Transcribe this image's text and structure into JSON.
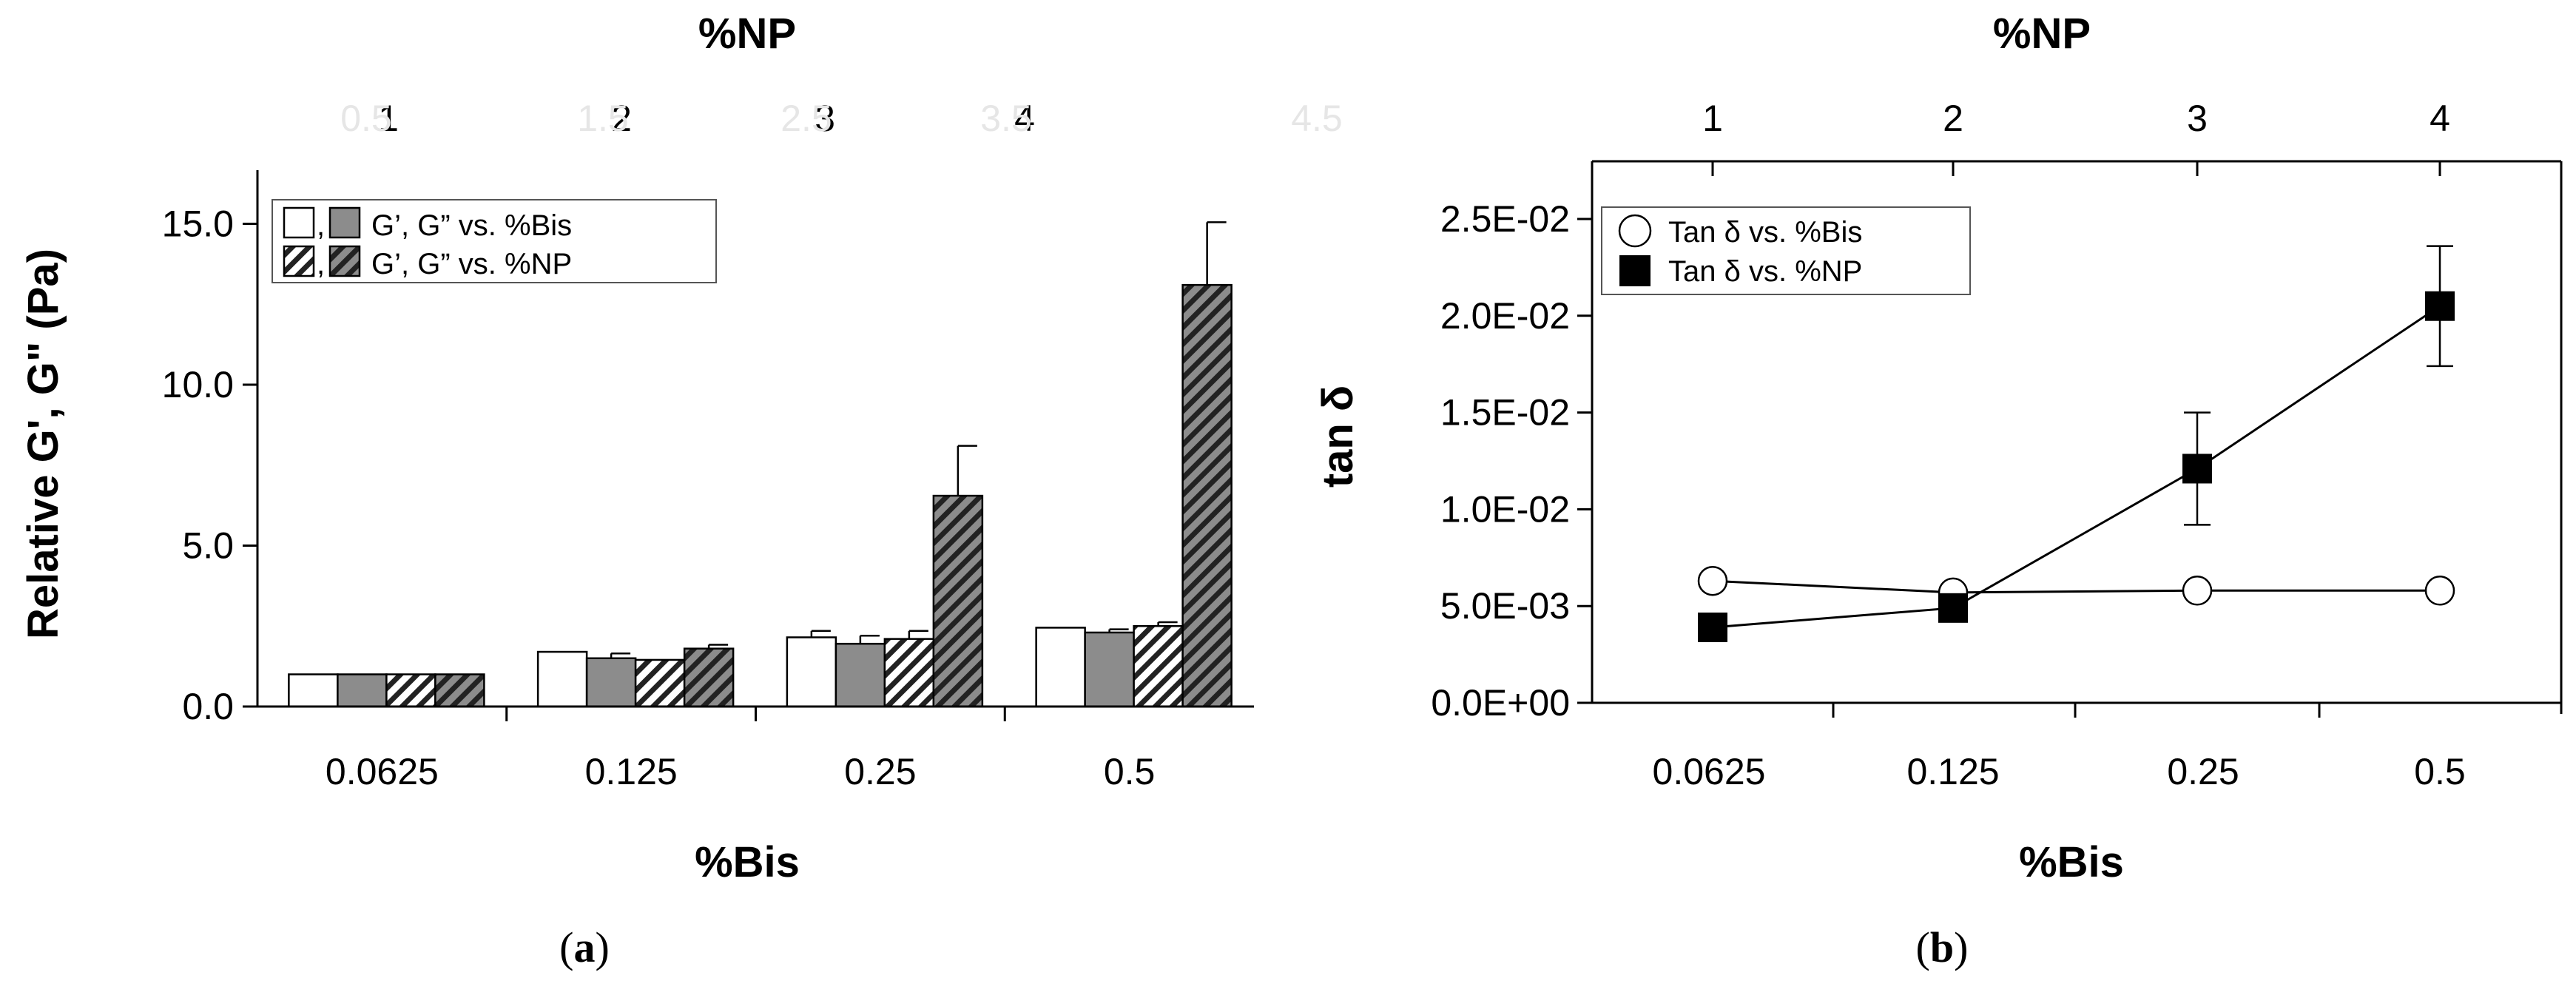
{
  "chart_data": [
    {
      "type": "bar",
      "panel_label": "(a)",
      "panel_letter": "a",
      "xlabel": "%Bis",
      "x2label": "%NP",
      "ylabel": "Relative G', G\" (Pa)",
      "categories": [
        "0.0625",
        "0.125",
        "0.25",
        "0.5"
      ],
      "top_categories": [
        "1",
        "2",
        "3",
        "4"
      ],
      "top_faint_ticks": [
        "0.5",
        "1.5",
        "2.5",
        "3.5",
        "4.5"
      ],
      "ylim": [
        0,
        16
      ],
      "yticks": [
        "0.0",
        "5.0",
        "10.0",
        "15.0"
      ],
      "ytick_values": [
        0,
        5,
        10,
        15
      ],
      "grid": false,
      "legend_position": "top-left",
      "legend": [
        {
          "sep": ",",
          "text": "G’, G” vs. %Bis"
        },
        {
          "sep": ",",
          "text": "G’, G” vs. %NP"
        }
      ],
      "series": [
        {
          "fill": "white",
          "values": [
            1.0,
            1.7,
            2.15,
            2.45
          ],
          "error": [
            0,
            0,
            0.2,
            0
          ]
        },
        {
          "fill": "gray",
          "values": [
            1.0,
            1.5,
            1.95,
            2.3
          ],
          "error": [
            0,
            0.15,
            0.25,
            0.1
          ]
        },
        {
          "fill": "hatch-white",
          "values": [
            1.0,
            1.45,
            2.1,
            2.5
          ],
          "error": [
            0,
            0,
            0.25,
            0.12
          ]
        },
        {
          "fill": "hatch-gray",
          "values": [
            1.0,
            1.8,
            6.55,
            13.1
          ],
          "error": [
            0,
            0.12,
            1.55,
            1.95
          ]
        }
      ]
    },
    {
      "type": "line",
      "panel_label": "(b)",
      "panel_letter": "b",
      "xlabel": "%Bis",
      "x2label": "%NP",
      "ylabel": "tan δ",
      "categories": [
        "0.0625",
        "0.125",
        "0.25",
        "0.5"
      ],
      "top_categories": [
        "1",
        "2",
        "3",
        "4"
      ],
      "ylim": [
        0,
        0.025
      ],
      "yticks": [
        "0.0E+00",
        "5.0E-03",
        "1.0E-02",
        "1.5E-02",
        "2.0E-02",
        "2.5E-02"
      ],
      "ytick_values": [
        0,
        0.005,
        0.01,
        0.015,
        0.02,
        0.025
      ],
      "grid": false,
      "legend_position": "top-left",
      "legend": [
        {
          "marker": "circle",
          "text": "Tan δ vs. %Bis"
        },
        {
          "marker": "square",
          "text": "Tan δ vs. %NP"
        }
      ],
      "series": [
        {
          "marker": "circle",
          "values": [
            0.0063,
            0.0057,
            0.0058,
            0.0058
          ],
          "error": [
            0,
            0,
            0,
            0
          ]
        },
        {
          "marker": "square",
          "values": [
            0.0039,
            0.0049,
            0.0121,
            0.0205
          ],
          "error": [
            0,
            0,
            0.0029,
            0.0031
          ]
        }
      ]
    }
  ]
}
